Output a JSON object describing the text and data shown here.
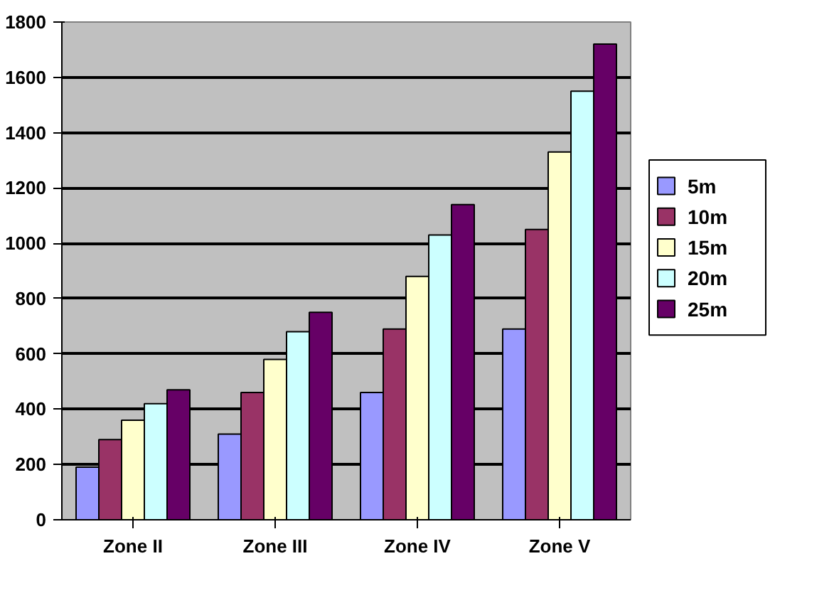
{
  "chart_data": {
    "type": "bar",
    "categories": [
      "Zone II",
      "Zone III",
      "Zone IV",
      "Zone V"
    ],
    "series": [
      {
        "name": "5m",
        "color": "#9999ff",
        "values": [
          190,
          310,
          460,
          690
        ]
      },
      {
        "name": "10m",
        "color": "#993366",
        "values": [
          290,
          460,
          690,
          1050
        ]
      },
      {
        "name": "15m",
        "color": "#ffffcc",
        "values": [
          360,
          580,
          880,
          1330
        ]
      },
      {
        "name": "20m",
        "color": "#ccffff",
        "values": [
          420,
          680,
          1030,
          1550
        ]
      },
      {
        "name": "25m",
        "color": "#660066",
        "values": [
          470,
          750,
          1140,
          1720
        ]
      }
    ],
    "ylim": [
      0,
      1800
    ],
    "yticks": [
      0,
      200,
      400,
      600,
      800,
      1000,
      1200,
      1400,
      1600,
      1800
    ],
    "grid": "y",
    "legend": "right"
  }
}
